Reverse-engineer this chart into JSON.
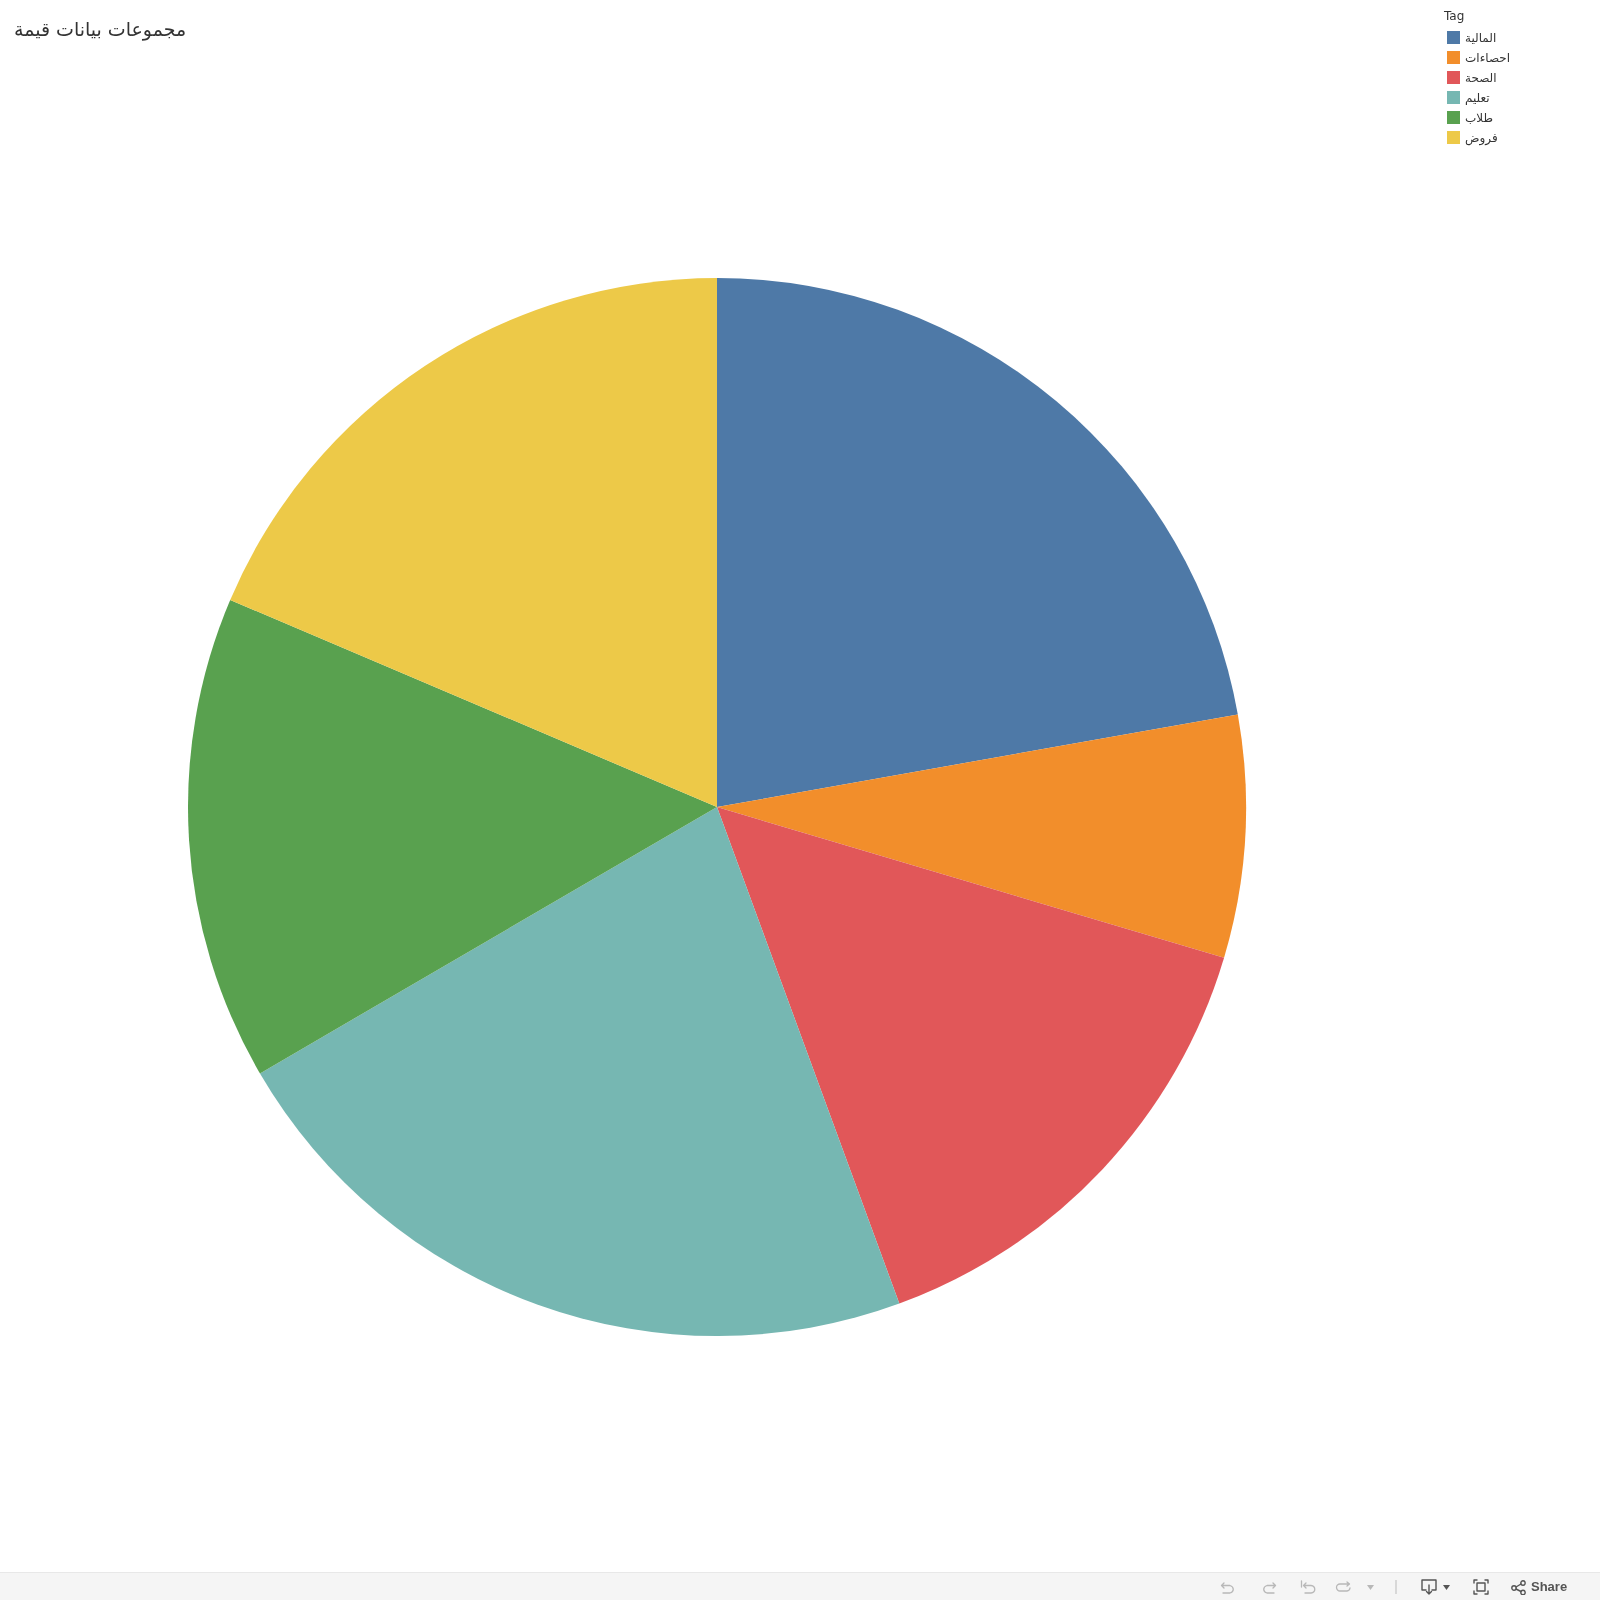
{
  "chart_data": {
    "type": "pie",
    "title": "مجموعات بيانات قيمة",
    "legend_title": "Tag",
    "categories": [
      "المالية",
      "احصاءات",
      "الصحة",
      "تعليم",
      "طلاب",
      "فروض"
    ],
    "values": [
      22.2,
      7.4,
      14.8,
      22.2,
      14.8,
      18.6
    ],
    "colors": [
      "#4e79a7",
      "#f28e2b",
      "#e15759",
      "#76b7b2",
      "#59a14f",
      "#edc948"
    ],
    "legend": "top right",
    "annotations": [
      "Share"
    ]
  }
}
